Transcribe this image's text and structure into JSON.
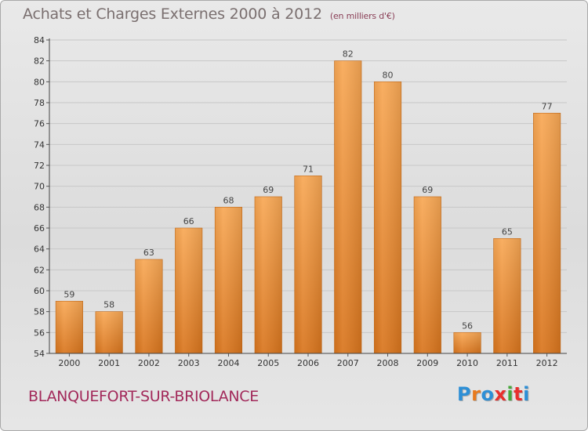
{
  "header": {
    "title": "Achats et Charges Externes 2000 à 2012",
    "subtitle": "(en milliers d'€)"
  },
  "footer": {
    "town": "BLANQUEFORT-SUR-BRIOLANCE",
    "logo_text": "Proxiti",
    "logo_colors": [
      "#2d8fd6",
      "#e87a1e",
      "#2d8fd6",
      "#e8302d",
      "#46a83b",
      "#e8302d",
      "#2d8fd6"
    ]
  },
  "colors": {
    "bar_top": "#f8a855",
    "bar_bottom": "#d9751d",
    "grid": "#c7c7c7"
  },
  "chart_data": {
    "type": "bar",
    "categories": [
      "2000",
      "2001",
      "2002",
      "2003",
      "2004",
      "2005",
      "2006",
      "2007",
      "2008",
      "2009",
      "2010",
      "2011",
      "2012"
    ],
    "values": [
      59,
      58,
      63,
      66,
      68,
      69,
      71,
      82,
      80,
      69,
      56,
      65,
      77
    ],
    "ylim": [
      54,
      84
    ],
    "yticks": [
      54,
      56,
      58,
      60,
      62,
      64,
      66,
      68,
      70,
      72,
      74,
      76,
      78,
      80,
      82,
      84
    ],
    "grid": true,
    "title": "Achats et Charges Externes 2000 à 2012",
    "subtitle": "(en milliers d'€)"
  }
}
